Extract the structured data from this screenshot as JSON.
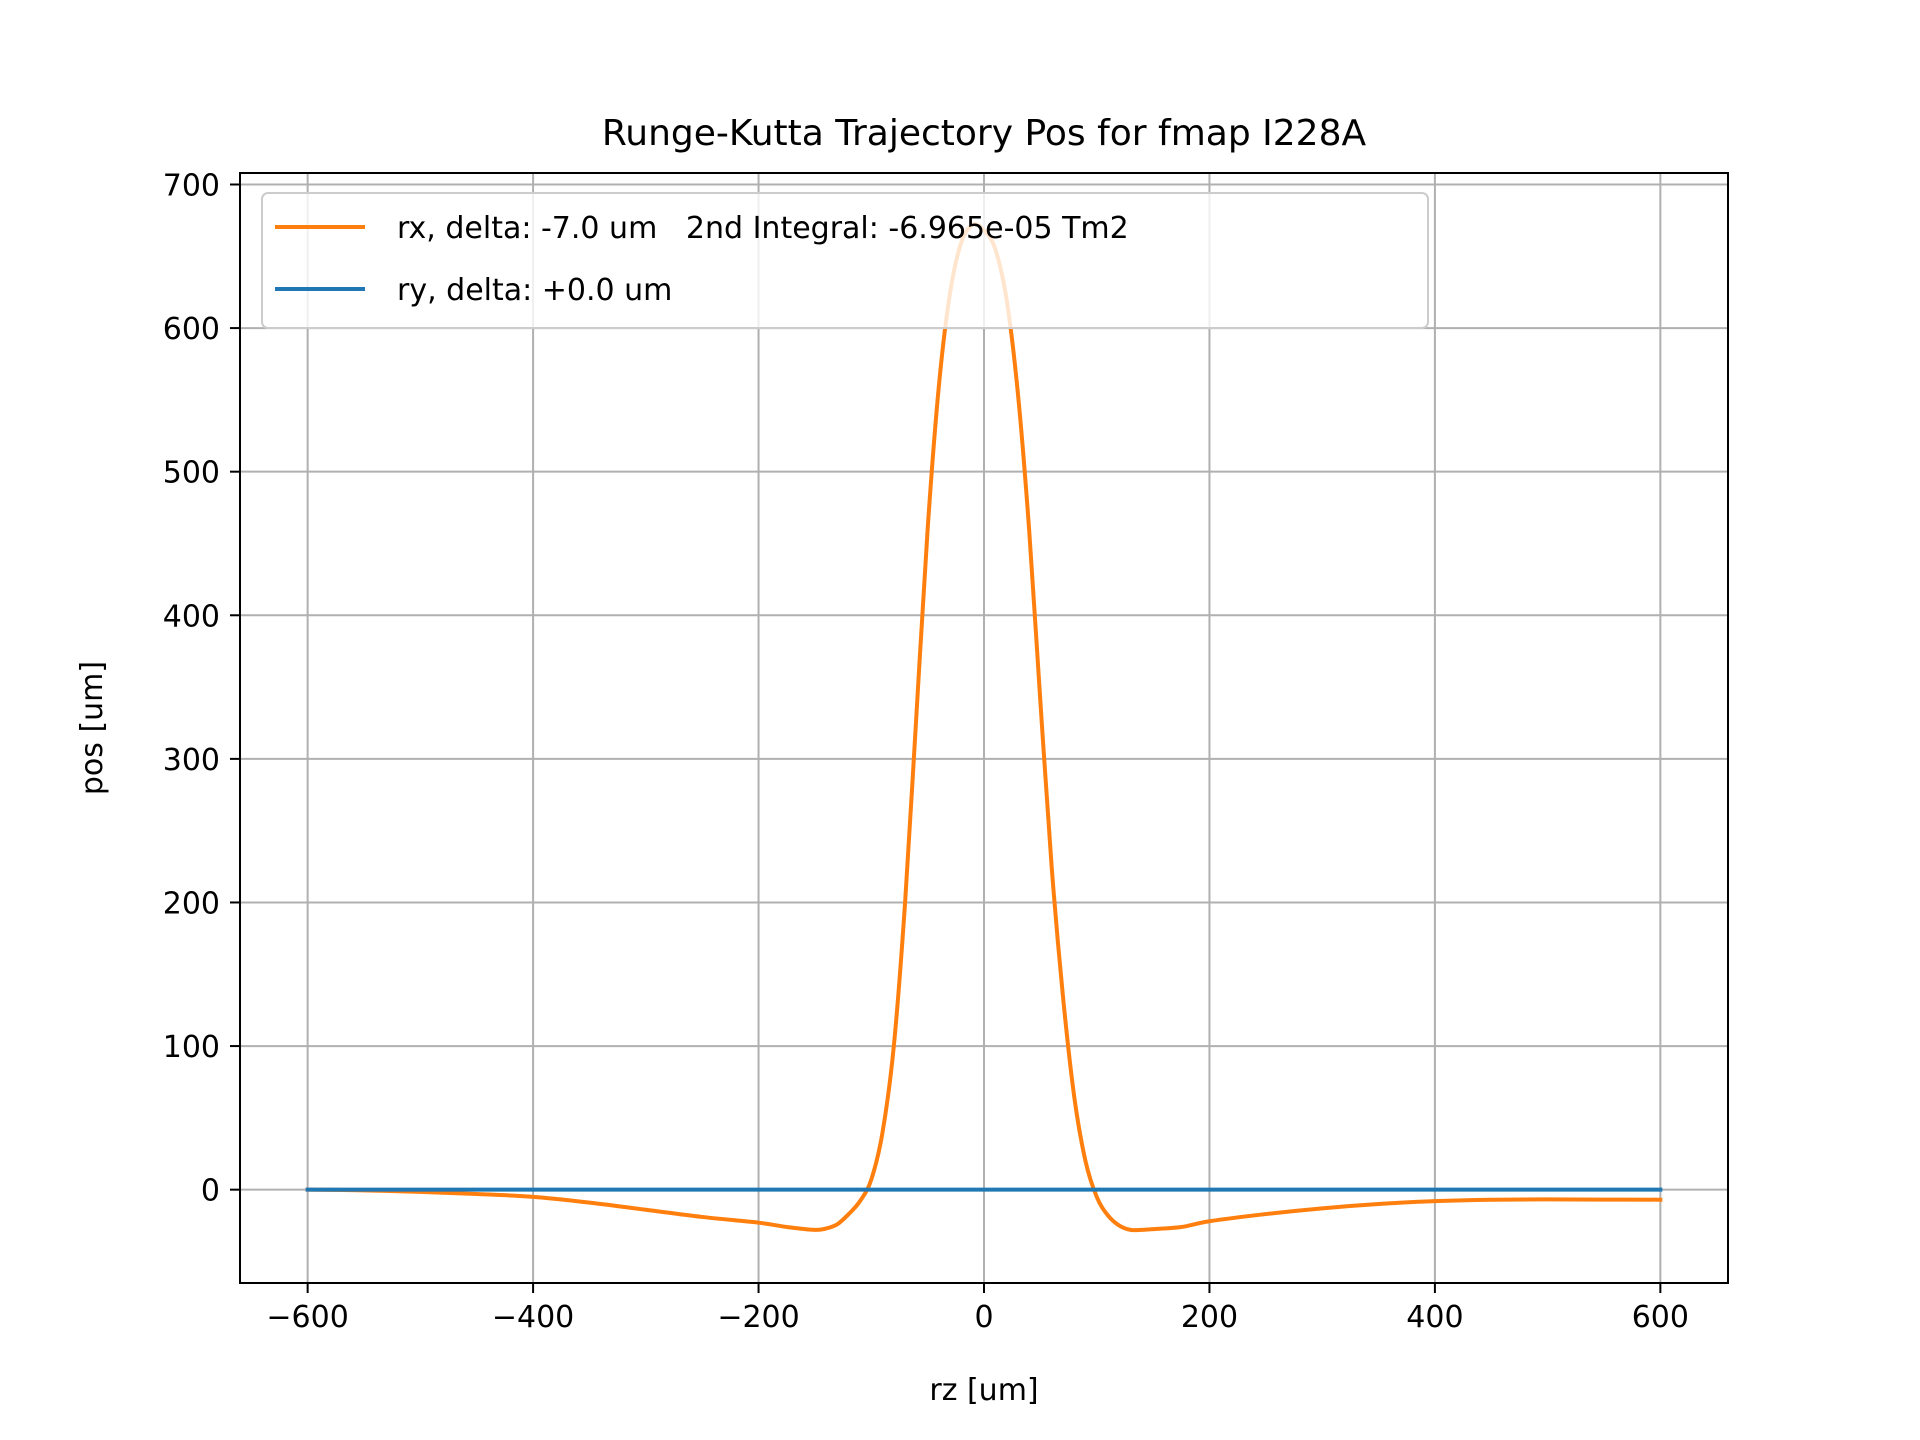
{
  "chart_data": {
    "type": "line",
    "title": "Runge-Kutta Trajectory Pos for fmap I228A",
    "xlabel": "rz [um]",
    "ylabel": "pos [um]",
    "xlim": [
      -660,
      660
    ],
    "ylim": [
      -65,
      708
    ],
    "xticks": [
      -600,
      -400,
      -200,
      0,
      200,
      400,
      600
    ],
    "xtick_labels": [
      "−600",
      "−400",
      "−200",
      "0",
      "200",
      "400",
      "600"
    ],
    "yticks": [
      0,
      100,
      200,
      300,
      400,
      500,
      600,
      700
    ],
    "ytick_labels": [
      "0",
      "100",
      "200",
      "300",
      "400",
      "500",
      "600",
      "700"
    ],
    "grid": true,
    "legend_position": "upper-left",
    "series": [
      {
        "name": "rx, delta: -7.0 um   2nd Integral: -6.965e-05 Tm2",
        "color": "#ff7f0e",
        "x": [
          -600,
          -550,
          -500,
          -450,
          -400,
          -350,
          -300,
          -250,
          -200,
          -175,
          -150,
          -140,
          -130,
          -120,
          -110,
          -100,
          -90,
          -80,
          -70,
          -60,
          -50,
          -40,
          -30,
          -20,
          -10,
          0,
          10,
          20,
          30,
          40,
          50,
          60,
          70,
          80,
          90,
          100,
          110,
          120,
          130,
          140,
          150,
          175,
          200,
          250,
          300,
          350,
          400,
          450,
          500,
          550,
          600
        ],
        "y": [
          0,
          -0.5,
          -1.5,
          -3,
          -5,
          -9,
          -14,
          -19,
          -23,
          -26,
          -28,
          -27,
          -24,
          -17,
          -8,
          7,
          40,
          100,
          200,
          330,
          460,
          560,
          625,
          660,
          672,
          668,
          655,
          620,
          555,
          460,
          340,
          225,
          135,
          65,
          20,
          -5,
          -18,
          -25,
          -28,
          -28,
          -27.5,
          -26,
          -22,
          -17,
          -13,
          -10,
          -8,
          -7,
          -6.8,
          -6.9,
          -7
        ]
      },
      {
        "name": "ry, delta: +0.0 um",
        "color": "#1f77b4",
        "x": [
          -600,
          600
        ],
        "y": [
          0,
          0
        ]
      }
    ]
  }
}
